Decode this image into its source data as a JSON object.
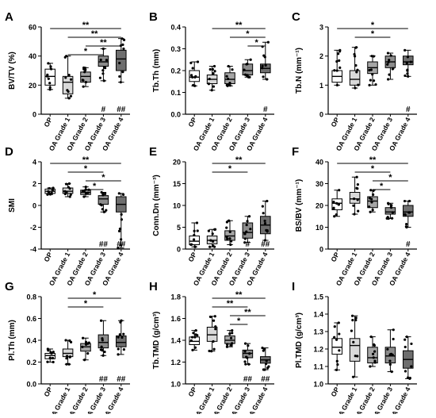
{
  "categories": [
    "OP",
    "OA Grade 1",
    "OA Grade 2",
    "OA Grade 3",
    "OA Grade 4"
  ],
  "box_fills": [
    "#ffffff",
    "#d9d9d9",
    "#a6a6a6",
    "#8c8c8c",
    "#6e6e6e"
  ],
  "chart_data": [
    {
      "type": "box",
      "letter": "A",
      "ylabel": "BV/TV (%)",
      "ylim": [
        0,
        60
      ],
      "yticks": [
        {
          "v": 0,
          "t": "0"
        },
        {
          "v": 20,
          "t": "20"
        },
        {
          "v": 40,
          "t": "40"
        },
        {
          "v": 60,
          "t": "60"
        }
      ],
      "boxes": [
        {
          "min": 17,
          "q1": 20,
          "med": 26,
          "q3": 31,
          "max": 35
        },
        {
          "min": 11,
          "q1": 14,
          "med": 22,
          "q3": 26,
          "max": 40
        },
        {
          "min": 19,
          "q1": 22,
          "med": 26,
          "q3": 29,
          "max": 32
        },
        {
          "min": 23,
          "q1": 33,
          "med": 36,
          "q3": 40,
          "max": 45
        },
        {
          "min": 22,
          "q1": 30,
          "med": 38,
          "q3": 44,
          "max": 52
        }
      ],
      "sig_lines": [
        {
          "from": 0,
          "to": 4,
          "label": "**"
        },
        {
          "from": 1,
          "to": 4,
          "label": "**"
        },
        {
          "from": 2,
          "to": 4,
          "label": "**"
        },
        {
          "from": 1,
          "to": 3,
          "label": "*"
        }
      ],
      "hash_marks": [
        {
          "index": 3,
          "label": "#"
        },
        {
          "index": 4,
          "label": "##"
        }
      ]
    },
    {
      "type": "box",
      "letter": "B",
      "ylabel": "Tb.Th (mm)",
      "ylim": [
        0.0,
        0.4
      ],
      "yticks": [
        {
          "v": 0.0,
          "t": "0.0"
        },
        {
          "v": 0.1,
          "t": "0.1"
        },
        {
          "v": 0.2,
          "t": "0.2"
        },
        {
          "v": 0.3,
          "t": "0.3"
        },
        {
          "v": 0.4,
          "t": "0.4"
        }
      ],
      "boxes": [
        {
          "min": 0.13,
          "q1": 0.15,
          "med": 0.17,
          "q3": 0.2,
          "max": 0.24
        },
        {
          "min": 0.11,
          "q1": 0.14,
          "med": 0.16,
          "q3": 0.18,
          "max": 0.22
        },
        {
          "min": 0.13,
          "q1": 0.14,
          "med": 0.16,
          "q3": 0.19,
          "max": 0.22
        },
        {
          "min": 0.17,
          "q1": 0.18,
          "med": 0.2,
          "q3": 0.23,
          "max": 0.25
        },
        {
          "min": 0.16,
          "q1": 0.19,
          "med": 0.21,
          "q3": 0.23,
          "max": 0.33
        }
      ],
      "sig_lines": [
        {
          "from": 1,
          "to": 4,
          "label": "**"
        },
        {
          "from": 2,
          "to": 4,
          "label": "*"
        },
        {
          "from": 3,
          "to": 4,
          "label": "*"
        }
      ],
      "hash_marks": [
        {
          "index": 4,
          "label": "#"
        }
      ]
    },
    {
      "type": "box",
      "letter": "C",
      "ylabel": "Tb.N (mm⁻¹)",
      "ylim": [
        0,
        3
      ],
      "yticks": [
        {
          "v": 0,
          "t": "0"
        },
        {
          "v": 1,
          "t": "1"
        },
        {
          "v": 2,
          "t": "2"
        },
        {
          "v": 3,
          "t": "3"
        }
      ],
      "boxes": [
        {
          "min": 1.0,
          "q1": 1.1,
          "med": 1.3,
          "q3": 1.5,
          "max": 2.2
        },
        {
          "min": 0.9,
          "q1": 1.0,
          "med": 1.2,
          "q3": 1.5,
          "max": 2.3
        },
        {
          "min": 1.0,
          "q1": 1.4,
          "med": 1.6,
          "q3": 1.8,
          "max": 2.0
        },
        {
          "min": 1.2,
          "q1": 1.6,
          "med": 1.8,
          "q3": 2.0,
          "max": 2.1
        },
        {
          "min": 1.3,
          "q1": 1.7,
          "med": 1.8,
          "q3": 2.0,
          "max": 2.2
        }
      ],
      "sig_lines": [
        {
          "from": 0,
          "to": 4,
          "label": "*"
        },
        {
          "from": 1,
          "to": 3,
          "label": "*"
        }
      ],
      "hash_marks": [
        {
          "index": 4,
          "label": "#"
        }
      ]
    },
    {
      "type": "box",
      "letter": "D",
      "ylabel": "SMI",
      "ylim": [
        -4,
        4
      ],
      "yticks": [
        {
          "v": -4,
          "t": "-4"
        },
        {
          "v": -2,
          "t": "-2"
        },
        {
          "v": 0,
          "t": "0"
        },
        {
          "v": 2,
          "t": "2"
        },
        {
          "v": 4,
          "t": "4"
        }
      ],
      "boxes": [
        {
          "min": 1.0,
          "q1": 1.1,
          "med": 1.3,
          "q3": 1.5,
          "max": 1.6
        },
        {
          "min": 0.8,
          "q1": 1.1,
          "med": 1.3,
          "q3": 1.6,
          "max": 2.0
        },
        {
          "min": 0.8,
          "q1": 1.0,
          "med": 1.2,
          "q3": 1.4,
          "max": 1.7
        },
        {
          "min": -0.6,
          "q1": 0.1,
          "med": 0.6,
          "q3": 0.9,
          "max": 1.2
        },
        {
          "min": -3.9,
          "q1": -0.6,
          "med": 0.1,
          "q3": 0.8,
          "max": 1.1
        }
      ],
      "sig_lines": [
        {
          "from": 0,
          "to": 4,
          "label": "**"
        },
        {
          "from": 1,
          "to": 3,
          "label": "*"
        },
        {
          "from": 2,
          "to": 4,
          "label": "*"
        },
        {
          "from": 2,
          "to": 3,
          "label": "*"
        }
      ],
      "hash_marks": [
        {
          "index": 3,
          "label": "##"
        },
        {
          "index": 4,
          "label": "##"
        }
      ]
    },
    {
      "type": "box",
      "letter": "E",
      "ylabel": "Conn.Dn (mm⁻³)",
      "ylim": [
        0,
        20
      ],
      "yticks": [
        {
          "v": 0,
          "t": "0"
        },
        {
          "v": 5,
          "t": "5"
        },
        {
          "v": 10,
          "t": "10"
        },
        {
          "v": 15,
          "t": "15"
        },
        {
          "v": 20,
          "t": "20"
        }
      ],
      "boxes": [
        {
          "min": 0.5,
          "q1": 1.0,
          "med": 1.8,
          "q3": 3.0,
          "max": 6.0
        },
        {
          "min": 0.5,
          "q1": 1.2,
          "med": 2.0,
          "q3": 3.0,
          "max": 4.5
        },
        {
          "min": 1.0,
          "q1": 2.0,
          "med": 3.0,
          "q3": 4.2,
          "max": 6.5
        },
        {
          "min": 1.5,
          "q1": 2.5,
          "med": 3.8,
          "q3": 6.0,
          "max": 7.5
        },
        {
          "min": 2.0,
          "q1": 3.5,
          "med": 5.5,
          "q3": 7.5,
          "max": 11.0
        }
      ],
      "sig_lines": [
        {
          "from": 1,
          "to": 4,
          "label": "**"
        },
        {
          "from": 1,
          "to": 3,
          "label": "*"
        }
      ],
      "hash_marks": [
        {
          "index": 3,
          "label": "#"
        },
        {
          "index": 4,
          "label": "##"
        }
      ]
    },
    {
      "type": "box",
      "letter": "F",
      "ylabel": "BS/BV (mm⁻¹)",
      "ylim": [
        0,
        40
      ],
      "yticks": [
        {
          "v": 0,
          "t": "0"
        },
        {
          "v": 10,
          "t": "10"
        },
        {
          "v": 20,
          "t": "20"
        },
        {
          "v": 30,
          "t": "30"
        },
        {
          "v": 40,
          "t": "40"
        }
      ],
      "boxes": [
        {
          "min": 15,
          "q1": 18,
          "med": 21,
          "q3": 23,
          "max": 27
        },
        {
          "min": 16,
          "q1": 21,
          "med": 23,
          "q3": 26,
          "max": 33
        },
        {
          "min": 17,
          "q1": 19,
          "med": 22,
          "q3": 24,
          "max": 27
        },
        {
          "min": 14,
          "q1": 16,
          "med": 17,
          "q3": 19,
          "max": 21
        },
        {
          "min": 10,
          "q1": 15,
          "med": 17,
          "q3": 20,
          "max": 22
        }
      ],
      "sig_lines": [
        {
          "from": 0,
          "to": 4,
          "label": "**"
        },
        {
          "from": 1,
          "to": 3,
          "label": "*"
        },
        {
          "from": 2,
          "to": 4,
          "label": "*"
        },
        {
          "from": 2,
          "to": 3,
          "label": "*"
        }
      ],
      "hash_marks": [
        {
          "index": 4,
          "label": "#"
        }
      ]
    },
    {
      "type": "box",
      "letter": "G",
      "ylabel": "Pl.Th (mm)",
      "ylim": [
        0.0,
        0.8
      ],
      "yticks": [
        {
          "v": 0.0,
          "t": "0.0"
        },
        {
          "v": 0.2,
          "t": "0.2"
        },
        {
          "v": 0.4,
          "t": "0.4"
        },
        {
          "v": 0.6,
          "t": "0.6"
        },
        {
          "v": 0.8,
          "t": "0.8"
        }
      ],
      "boxes": [
        {
          "min": 0.2,
          "q1": 0.23,
          "med": 0.26,
          "q3": 0.28,
          "max": 0.32
        },
        {
          "min": 0.18,
          "q1": 0.25,
          "med": 0.28,
          "q3": 0.32,
          "max": 0.4
        },
        {
          "min": 0.22,
          "q1": 0.3,
          "med": 0.34,
          "q3": 0.37,
          "max": 0.42
        },
        {
          "min": 0.26,
          "q1": 0.33,
          "med": 0.38,
          "q3": 0.45,
          "max": 0.58
        },
        {
          "min": 0.27,
          "q1": 0.34,
          "med": 0.38,
          "q3": 0.44,
          "max": 0.58
        }
      ],
      "sig_lines": [
        {
          "from": 1,
          "to": 4,
          "label": "*"
        },
        {
          "from": 1,
          "to": 3,
          "label": "*"
        }
      ],
      "hash_marks": [
        {
          "index": 3,
          "label": "##"
        },
        {
          "index": 4,
          "label": "##"
        }
      ]
    },
    {
      "type": "box",
      "letter": "H",
      "ylabel": "Tb.TMD (g/cm³)",
      "ylim": [
        1.0,
        1.8
      ],
      "yticks": [
        {
          "v": 1.0,
          "t": "1.0"
        },
        {
          "v": 1.2,
          "t": "1.2"
        },
        {
          "v": 1.4,
          "t": "1.4"
        },
        {
          "v": 1.6,
          "t": "1.6"
        },
        {
          "v": 1.8,
          "t": "1.8"
        }
      ],
      "boxes": [
        {
          "min": 1.31,
          "q1": 1.36,
          "med": 1.39,
          "q3": 1.43,
          "max": 1.49
        },
        {
          "min": 1.3,
          "q1": 1.39,
          "med": 1.45,
          "q3": 1.52,
          "max": 1.62
        },
        {
          "min": 1.34,
          "q1": 1.37,
          "med": 1.4,
          "q3": 1.44,
          "max": 1.49
        },
        {
          "min": 1.18,
          "q1": 1.24,
          "med": 1.28,
          "q3": 1.31,
          "max": 1.37
        },
        {
          "min": 1.13,
          "q1": 1.19,
          "med": 1.22,
          "q3": 1.25,
          "max": 1.33
        }
      ],
      "sig_lines": [
        {
          "from": 1,
          "to": 4,
          "label": "**"
        },
        {
          "from": 1,
          "to": 3,
          "label": "**"
        },
        {
          "from": 2,
          "to": 4,
          "label": "**"
        },
        {
          "from": 2,
          "to": 3,
          "label": "*"
        }
      ],
      "hash_marks": [
        {
          "index": 3,
          "label": "##"
        },
        {
          "index": 4,
          "label": "##"
        }
      ]
    },
    {
      "type": "box",
      "letter": "I",
      "ylabel": "Pl.TMD (g/cm³)",
      "ylim": [
        1.0,
        1.5
      ],
      "yticks": [
        {
          "v": 1.0,
          "t": "1.0"
        },
        {
          "v": 1.1,
          "t": "1.1"
        },
        {
          "v": 1.2,
          "t": "1.2"
        },
        {
          "v": 1.3,
          "t": "1.3"
        },
        {
          "v": 1.4,
          "t": "1.4"
        },
        {
          "v": 1.5,
          "t": "1.5"
        }
      ],
      "boxes": [
        {
          "min": 1.08,
          "q1": 1.17,
          "med": 1.21,
          "q3": 1.26,
          "max": 1.35
        },
        {
          "min": 1.04,
          "q1": 1.13,
          "med": 1.22,
          "q3": 1.26,
          "max": 1.39
        },
        {
          "min": 1.1,
          "q1": 1.12,
          "med": 1.15,
          "q3": 1.21,
          "max": 1.27
        },
        {
          "min": 1.07,
          "q1": 1.12,
          "med": 1.16,
          "q3": 1.21,
          "max": 1.31
        },
        {
          "min": 1.03,
          "q1": 1.09,
          "med": 1.14,
          "q3": 1.19,
          "max": 1.27
        }
      ],
      "sig_lines": [],
      "hash_marks": []
    }
  ]
}
